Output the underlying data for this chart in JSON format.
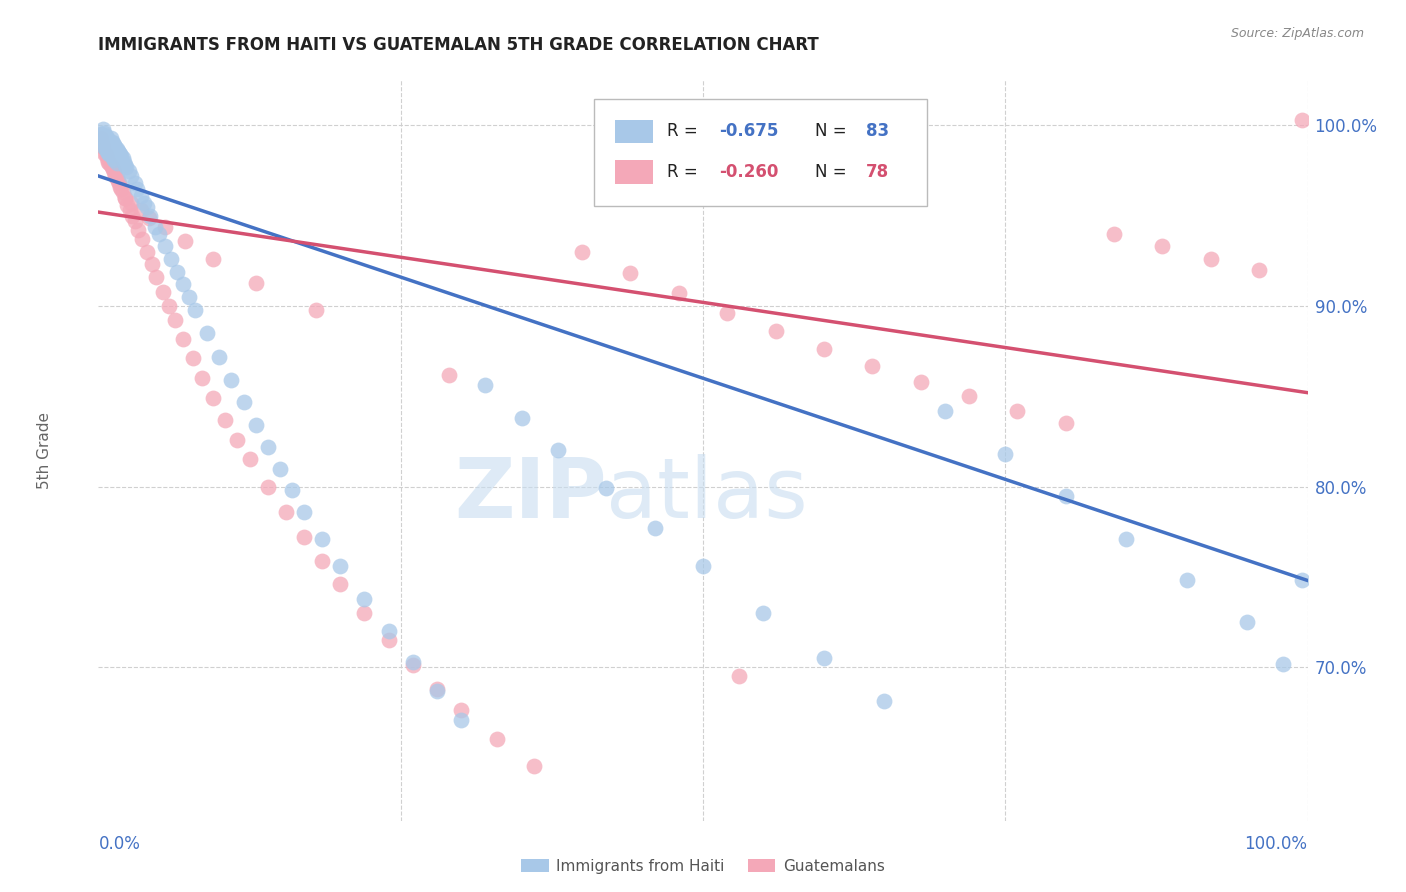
{
  "title": "IMMIGRANTS FROM HAITI VS GUATEMALAN 5TH GRADE CORRELATION CHART",
  "source": "Source: ZipAtlas.com",
  "ylabel": "5th Grade",
  "legend_label_blue": "Immigrants from Haiti",
  "legend_label_pink": "Guatemalans",
  "ytick_labels": [
    "100.0%",
    "90.0%",
    "80.0%",
    "70.0%"
  ],
  "ytick_values": [
    1.0,
    0.9,
    0.8,
    0.7
  ],
  "blue_color": "#a8c8e8",
  "pink_color": "#f4a8b8",
  "blue_line_color": "#4472c4",
  "pink_line_color": "#d45070",
  "axis_label_color": "#4472c4",
  "blue_line_x0": 0.0,
  "blue_line_x1": 1.0,
  "blue_line_y0": 0.972,
  "blue_line_y1": 0.748,
  "pink_line_x0": 0.0,
  "pink_line_x1": 1.0,
  "pink_line_y0": 0.952,
  "pink_line_y1": 0.852,
  "ylim_low": 0.615,
  "ylim_high": 1.025,
  "xlim_low": 0.0,
  "xlim_high": 1.0,
  "blue_x": [
    0.002,
    0.003,
    0.004,
    0.004,
    0.005,
    0.005,
    0.006,
    0.006,
    0.007,
    0.007,
    0.008,
    0.008,
    0.009,
    0.009,
    0.01,
    0.01,
    0.01,
    0.011,
    0.011,
    0.012,
    0.012,
    0.013,
    0.013,
    0.014,
    0.015,
    0.015,
    0.016,
    0.017,
    0.018,
    0.019,
    0.02,
    0.021,
    0.022,
    0.023,
    0.025,
    0.027,
    0.03,
    0.032,
    0.035,
    0.038,
    0.04,
    0.043,
    0.047,
    0.05,
    0.055,
    0.06,
    0.065,
    0.07,
    0.075,
    0.08,
    0.09,
    0.1,
    0.11,
    0.12,
    0.13,
    0.14,
    0.15,
    0.16,
    0.17,
    0.185,
    0.2,
    0.22,
    0.24,
    0.26,
    0.28,
    0.3,
    0.32,
    0.35,
    0.38,
    0.42,
    0.46,
    0.5,
    0.55,
    0.6,
    0.65,
    0.7,
    0.75,
    0.8,
    0.85,
    0.9,
    0.95,
    0.98,
    0.995
  ],
  "blue_y": [
    0.995,
    0.992,
    0.998,
    0.99,
    0.996,
    0.988,
    0.994,
    0.987,
    0.993,
    0.986,
    0.992,
    0.985,
    0.991,
    0.984,
    0.993,
    0.99,
    0.987,
    0.991,
    0.984,
    0.99,
    0.982,
    0.989,
    0.981,
    0.988,
    0.987,
    0.979,
    0.986,
    0.985,
    0.984,
    0.983,
    0.982,
    0.98,
    0.978,
    0.977,
    0.975,
    0.972,
    0.968,
    0.965,
    0.961,
    0.957,
    0.955,
    0.95,
    0.944,
    0.94,
    0.933,
    0.926,
    0.919,
    0.912,
    0.905,
    0.898,
    0.885,
    0.872,
    0.859,
    0.847,
    0.834,
    0.822,
    0.81,
    0.798,
    0.786,
    0.771,
    0.756,
    0.738,
    0.72,
    0.703,
    0.687,
    0.671,
    0.856,
    0.838,
    0.82,
    0.799,
    0.777,
    0.756,
    0.73,
    0.705,
    0.681,
    0.842,
    0.818,
    0.795,
    0.771,
    0.748,
    0.725,
    0.702,
    0.748
  ],
  "pink_x": [
    0.002,
    0.003,
    0.004,
    0.005,
    0.006,
    0.007,
    0.008,
    0.009,
    0.01,
    0.011,
    0.012,
    0.013,
    0.014,
    0.015,
    0.016,
    0.017,
    0.018,
    0.019,
    0.02,
    0.022,
    0.024,
    0.026,
    0.028,
    0.03,
    0.033,
    0.036,
    0.04,
    0.044,
    0.048,
    0.053,
    0.058,
    0.063,
    0.07,
    0.078,
    0.086,
    0.095,
    0.105,
    0.115,
    0.125,
    0.14,
    0.155,
    0.17,
    0.185,
    0.2,
    0.22,
    0.24,
    0.26,
    0.28,
    0.3,
    0.33,
    0.36,
    0.4,
    0.44,
    0.48,
    0.52,
    0.56,
    0.6,
    0.64,
    0.68,
    0.72,
    0.76,
    0.8,
    0.84,
    0.88,
    0.92,
    0.96,
    0.995,
    0.53,
    0.29,
    0.18,
    0.13,
    0.095,
    0.072,
    0.055,
    0.042,
    0.035,
    0.027,
    0.022
  ],
  "pink_y": [
    0.993,
    0.99,
    0.988,
    0.985,
    0.984,
    0.982,
    0.98,
    0.979,
    0.978,
    0.977,
    0.976,
    0.974,
    0.972,
    0.971,
    0.969,
    0.968,
    0.966,
    0.965,
    0.963,
    0.96,
    0.956,
    0.953,
    0.95,
    0.947,
    0.942,
    0.937,
    0.93,
    0.923,
    0.916,
    0.908,
    0.9,
    0.892,
    0.882,
    0.871,
    0.86,
    0.849,
    0.837,
    0.826,
    0.815,
    0.8,
    0.786,
    0.772,
    0.759,
    0.746,
    0.73,
    0.715,
    0.701,
    0.688,
    0.676,
    0.66,
    0.645,
    0.93,
    0.918,
    0.907,
    0.896,
    0.886,
    0.876,
    0.867,
    0.858,
    0.85,
    0.842,
    0.835,
    0.94,
    0.933,
    0.926,
    0.92,
    1.003,
    0.695,
    0.862,
    0.898,
    0.913,
    0.926,
    0.936,
    0.944,
    0.949,
    0.953,
    0.957,
    0.96
  ]
}
